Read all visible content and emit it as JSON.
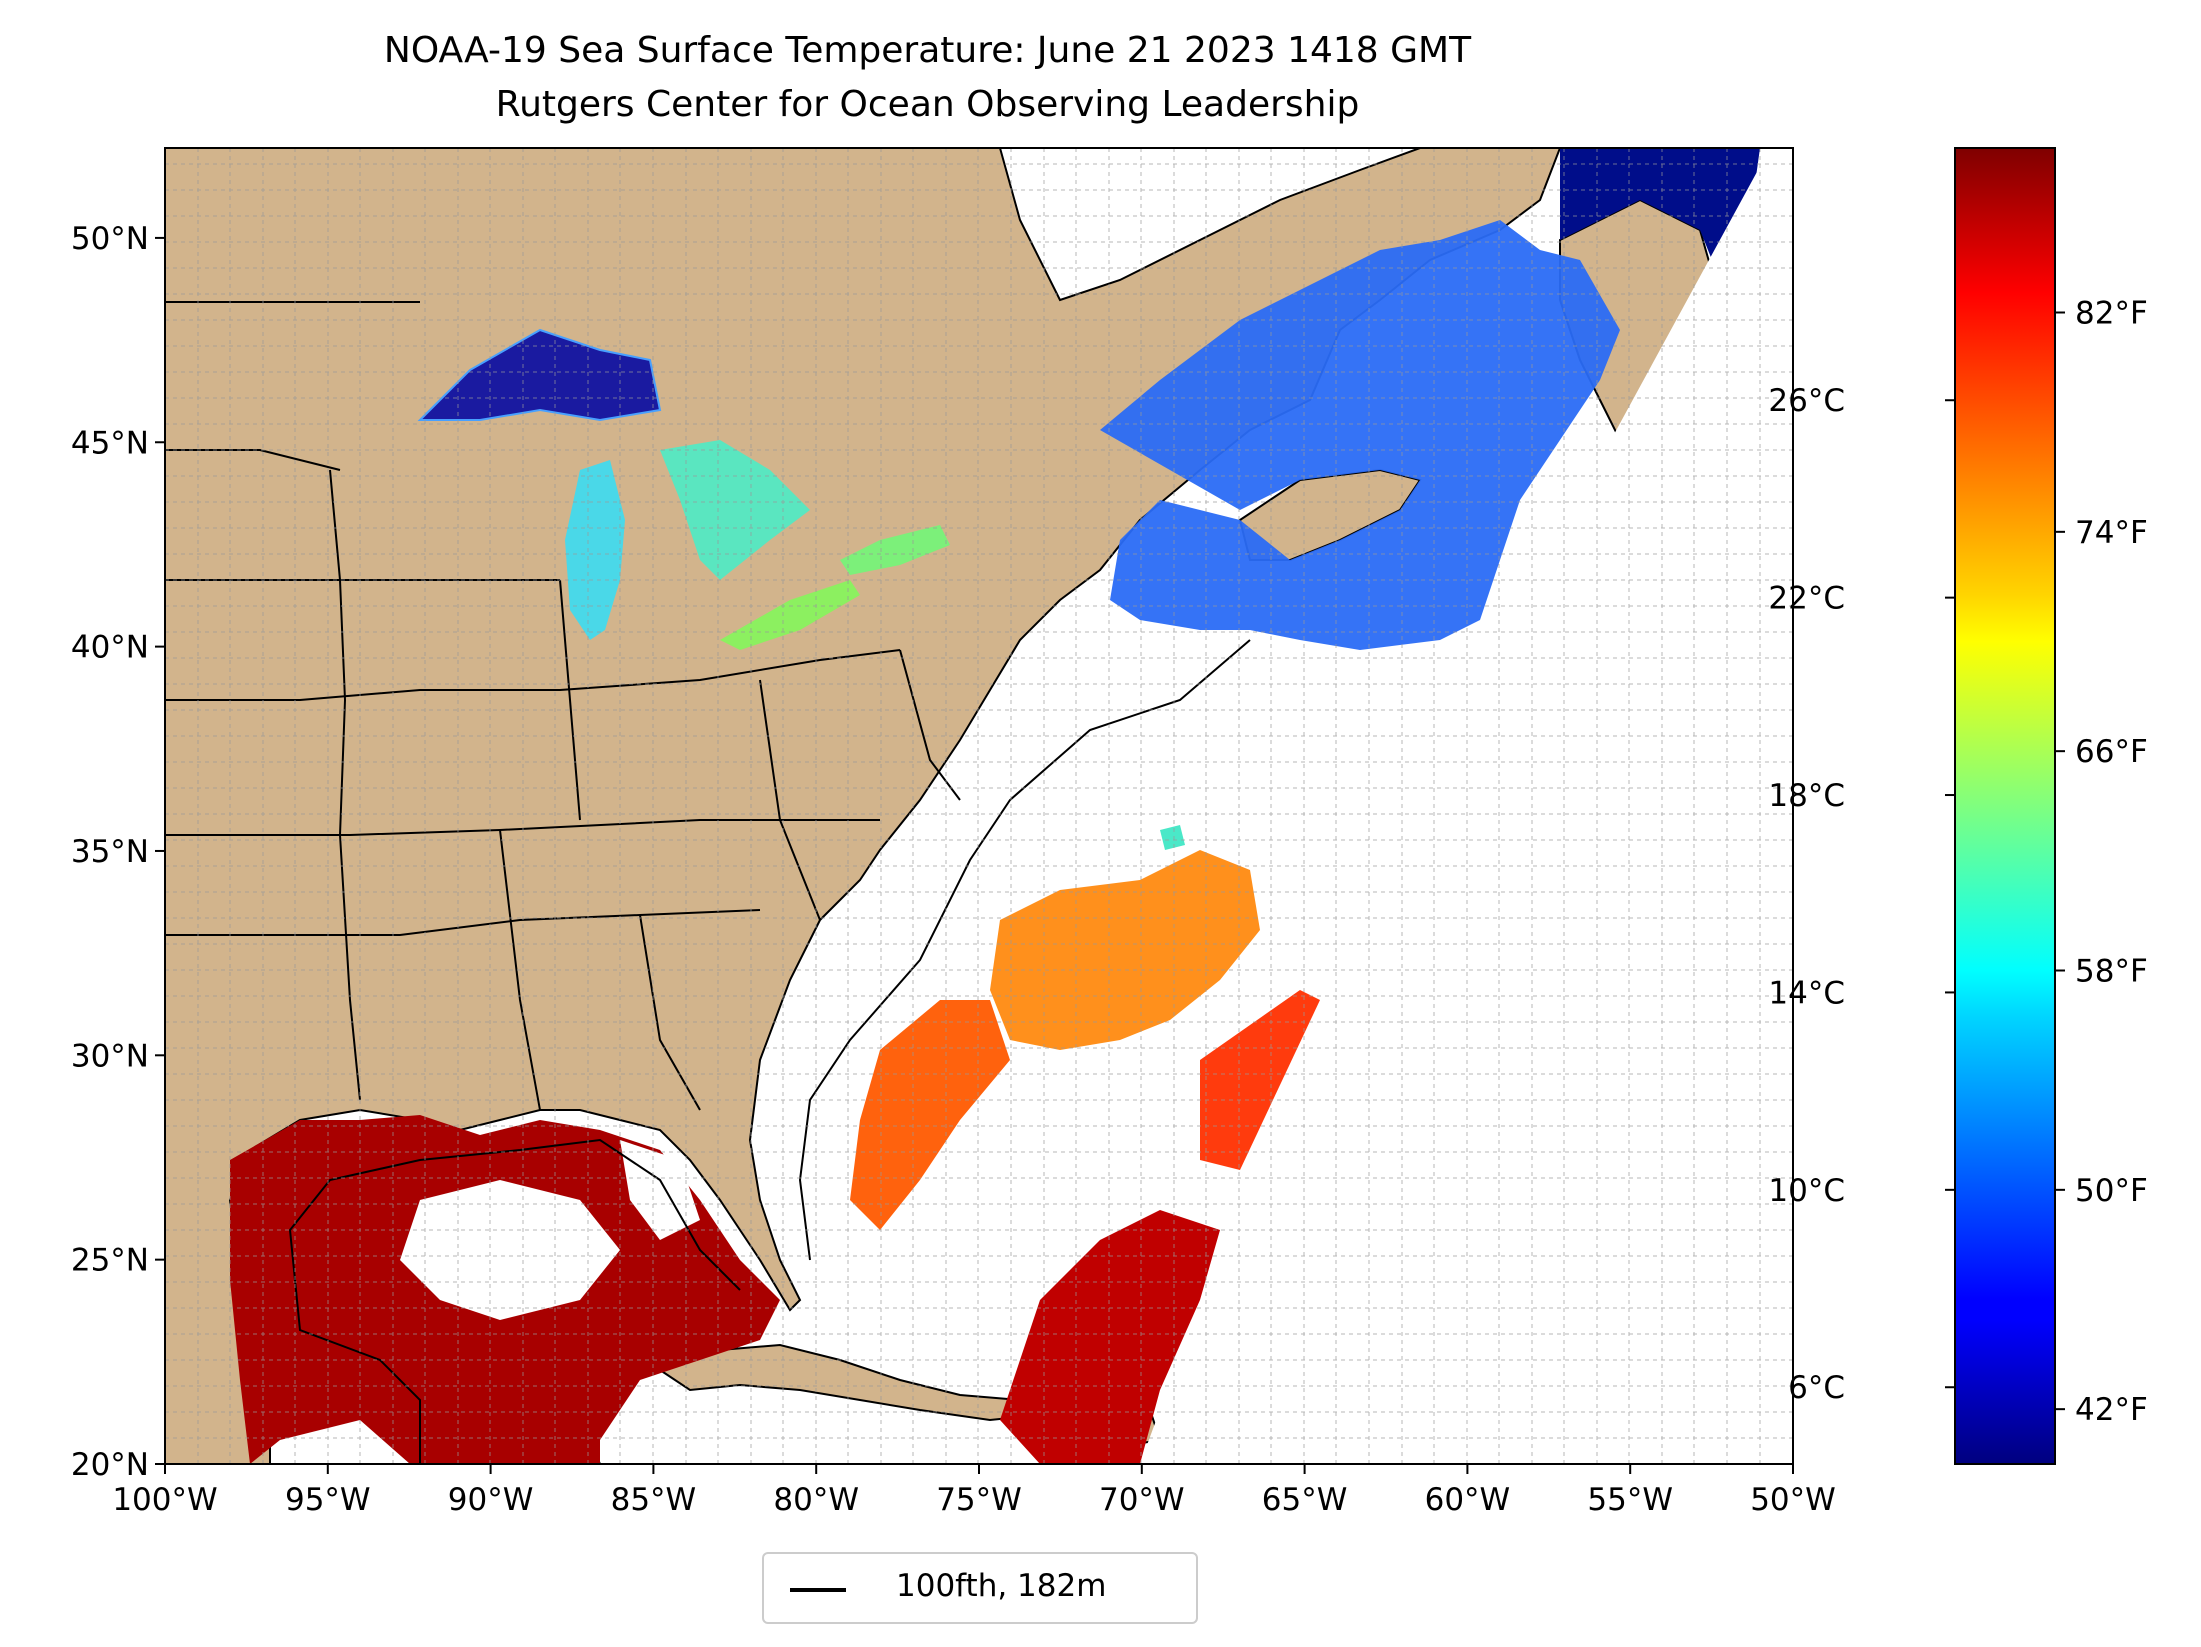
{
  "title": {
    "line1": "NOAA-19 Sea Surface Temperature: June 21 2023 1418 GMT",
    "line2": "Rutgers Center for Ocean Observing Leadership"
  },
  "map": {
    "lon_range": [
      -100,
      -50
    ],
    "lat_range": [
      20,
      52.2
    ],
    "lon_ticks": [
      {
        "value": -100,
        "label": "100°W"
      },
      {
        "value": -95,
        "label": "95°W"
      },
      {
        "value": -90,
        "label": "90°W"
      },
      {
        "value": -85,
        "label": "85°W"
      },
      {
        "value": -80,
        "label": "80°W"
      },
      {
        "value": -75,
        "label": "75°W"
      },
      {
        "value": -70,
        "label": "70°W"
      },
      {
        "value": -65,
        "label": "65°W"
      },
      {
        "value": -60,
        "label": "60°W"
      },
      {
        "value": -55,
        "label": "55°W"
      },
      {
        "value": -50,
        "label": "50°W"
      }
    ],
    "lat_ticks": [
      {
        "value": 20,
        "label": "20°N"
      },
      {
        "value": 25,
        "label": "25°N"
      },
      {
        "value": 30,
        "label": "30°N"
      },
      {
        "value": 35,
        "label": "35°N"
      },
      {
        "value": 40,
        "label": "40°N"
      },
      {
        "value": 45,
        "label": "45°N"
      },
      {
        "value": 50,
        "label": "50°N"
      }
    ],
    "grid": true,
    "land_color": "#d2b48c",
    "lake_color": "#97b6e1"
  },
  "colorbar": {
    "colormap": "jet",
    "range_f": [
      40,
      88
    ],
    "celsius_ticks": [
      {
        "value": 6,
        "label": "6°C"
      },
      {
        "value": 10,
        "label": "10°C"
      },
      {
        "value": 14,
        "label": "14°C"
      },
      {
        "value": 18,
        "label": "18°C"
      },
      {
        "value": 22,
        "label": "22°C"
      },
      {
        "value": 26,
        "label": "26°C"
      }
    ],
    "fahrenheit_ticks": [
      {
        "value": 42,
        "label": "42°F"
      },
      {
        "value": 50,
        "label": "50°F"
      },
      {
        "value": 58,
        "label": "58°F"
      },
      {
        "value": 66,
        "label": "66°F"
      },
      {
        "value": 74,
        "label": "74°F"
      },
      {
        "value": 82,
        "label": "82°F"
      }
    ]
  },
  "legend": {
    "label": "100fth, 182m",
    "line_color": "#000000"
  }
}
